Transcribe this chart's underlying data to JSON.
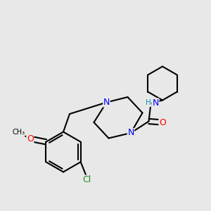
{
  "bg_color": "#e8e8e8",
  "bond_color": "#000000",
  "line_width": 1.5,
  "font_size_atom": 9,
  "font_size_small": 7.5,
  "colors": {
    "N": "#0000ff",
    "O": "#ff0000",
    "Cl": "#228822",
    "H": "#009999",
    "C": "#000000"
  },
  "figsize": [
    3.0,
    3.0
  ],
  "dpi": 100
}
